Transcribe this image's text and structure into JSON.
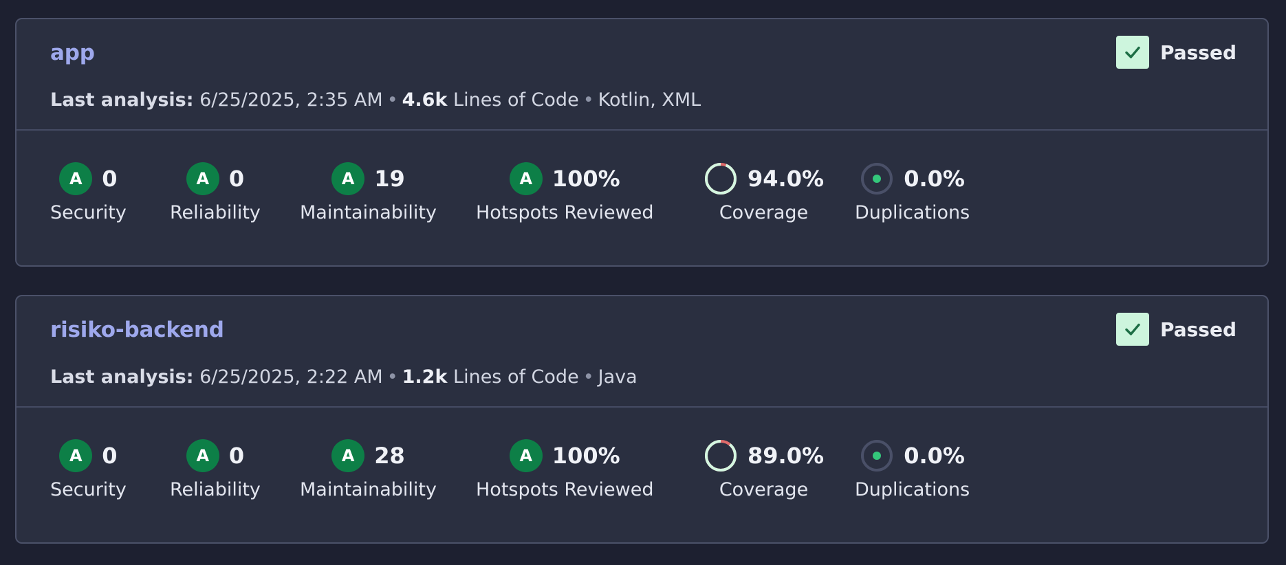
{
  "projects": [
    {
      "name": "app",
      "status": "Passed",
      "meta": {
        "label": "Last analysis:",
        "date": "6/25/2025, 2:35 AM",
        "loc": "4.6k",
        "loc_label": "Lines of Code",
        "languages": "Kotlin, XML"
      },
      "metrics": {
        "security": {
          "grade": "A",
          "value": "0",
          "label": "Security"
        },
        "reliability": {
          "grade": "A",
          "value": "0",
          "label": "Reliability"
        },
        "maintainability": {
          "grade": "A",
          "value": "19",
          "label": "Maintainability"
        },
        "hotspots": {
          "grade": "A",
          "value": "100%",
          "label": "Hotspots Reviewed"
        },
        "coverage": {
          "value": "94.0%",
          "label": "Coverage",
          "percent": 94.0
        },
        "duplications": {
          "value": "0.0%",
          "label": "Duplications",
          "percent": 0.0
        }
      }
    },
    {
      "name": "risiko-backend",
      "status": "Passed",
      "meta": {
        "label": "Last analysis:",
        "date": "6/25/2025, 2:22 AM",
        "loc": "1.2k",
        "loc_label": "Lines of Code",
        "languages": "Java"
      },
      "metrics": {
        "security": {
          "grade": "A",
          "value": "0",
          "label": "Security"
        },
        "reliability": {
          "grade": "A",
          "value": "0",
          "label": "Reliability"
        },
        "maintainability": {
          "grade": "A",
          "value": "28",
          "label": "Maintainability"
        },
        "hotspots": {
          "grade": "A",
          "value": "100%",
          "label": "Hotspots Reviewed"
        },
        "coverage": {
          "value": "89.0%",
          "label": "Coverage",
          "percent": 89.0
        },
        "duplications": {
          "value": "0.0%",
          "label": "Duplications",
          "percent": 0.0
        }
      }
    }
  ],
  "colors": {
    "grade_a": "#0d7f47",
    "coverage_covered": "#d4f7e1",
    "coverage_uncovered": "#e06b6b",
    "duplication_dot": "#34c77b",
    "link": "#9ea8ec"
  }
}
